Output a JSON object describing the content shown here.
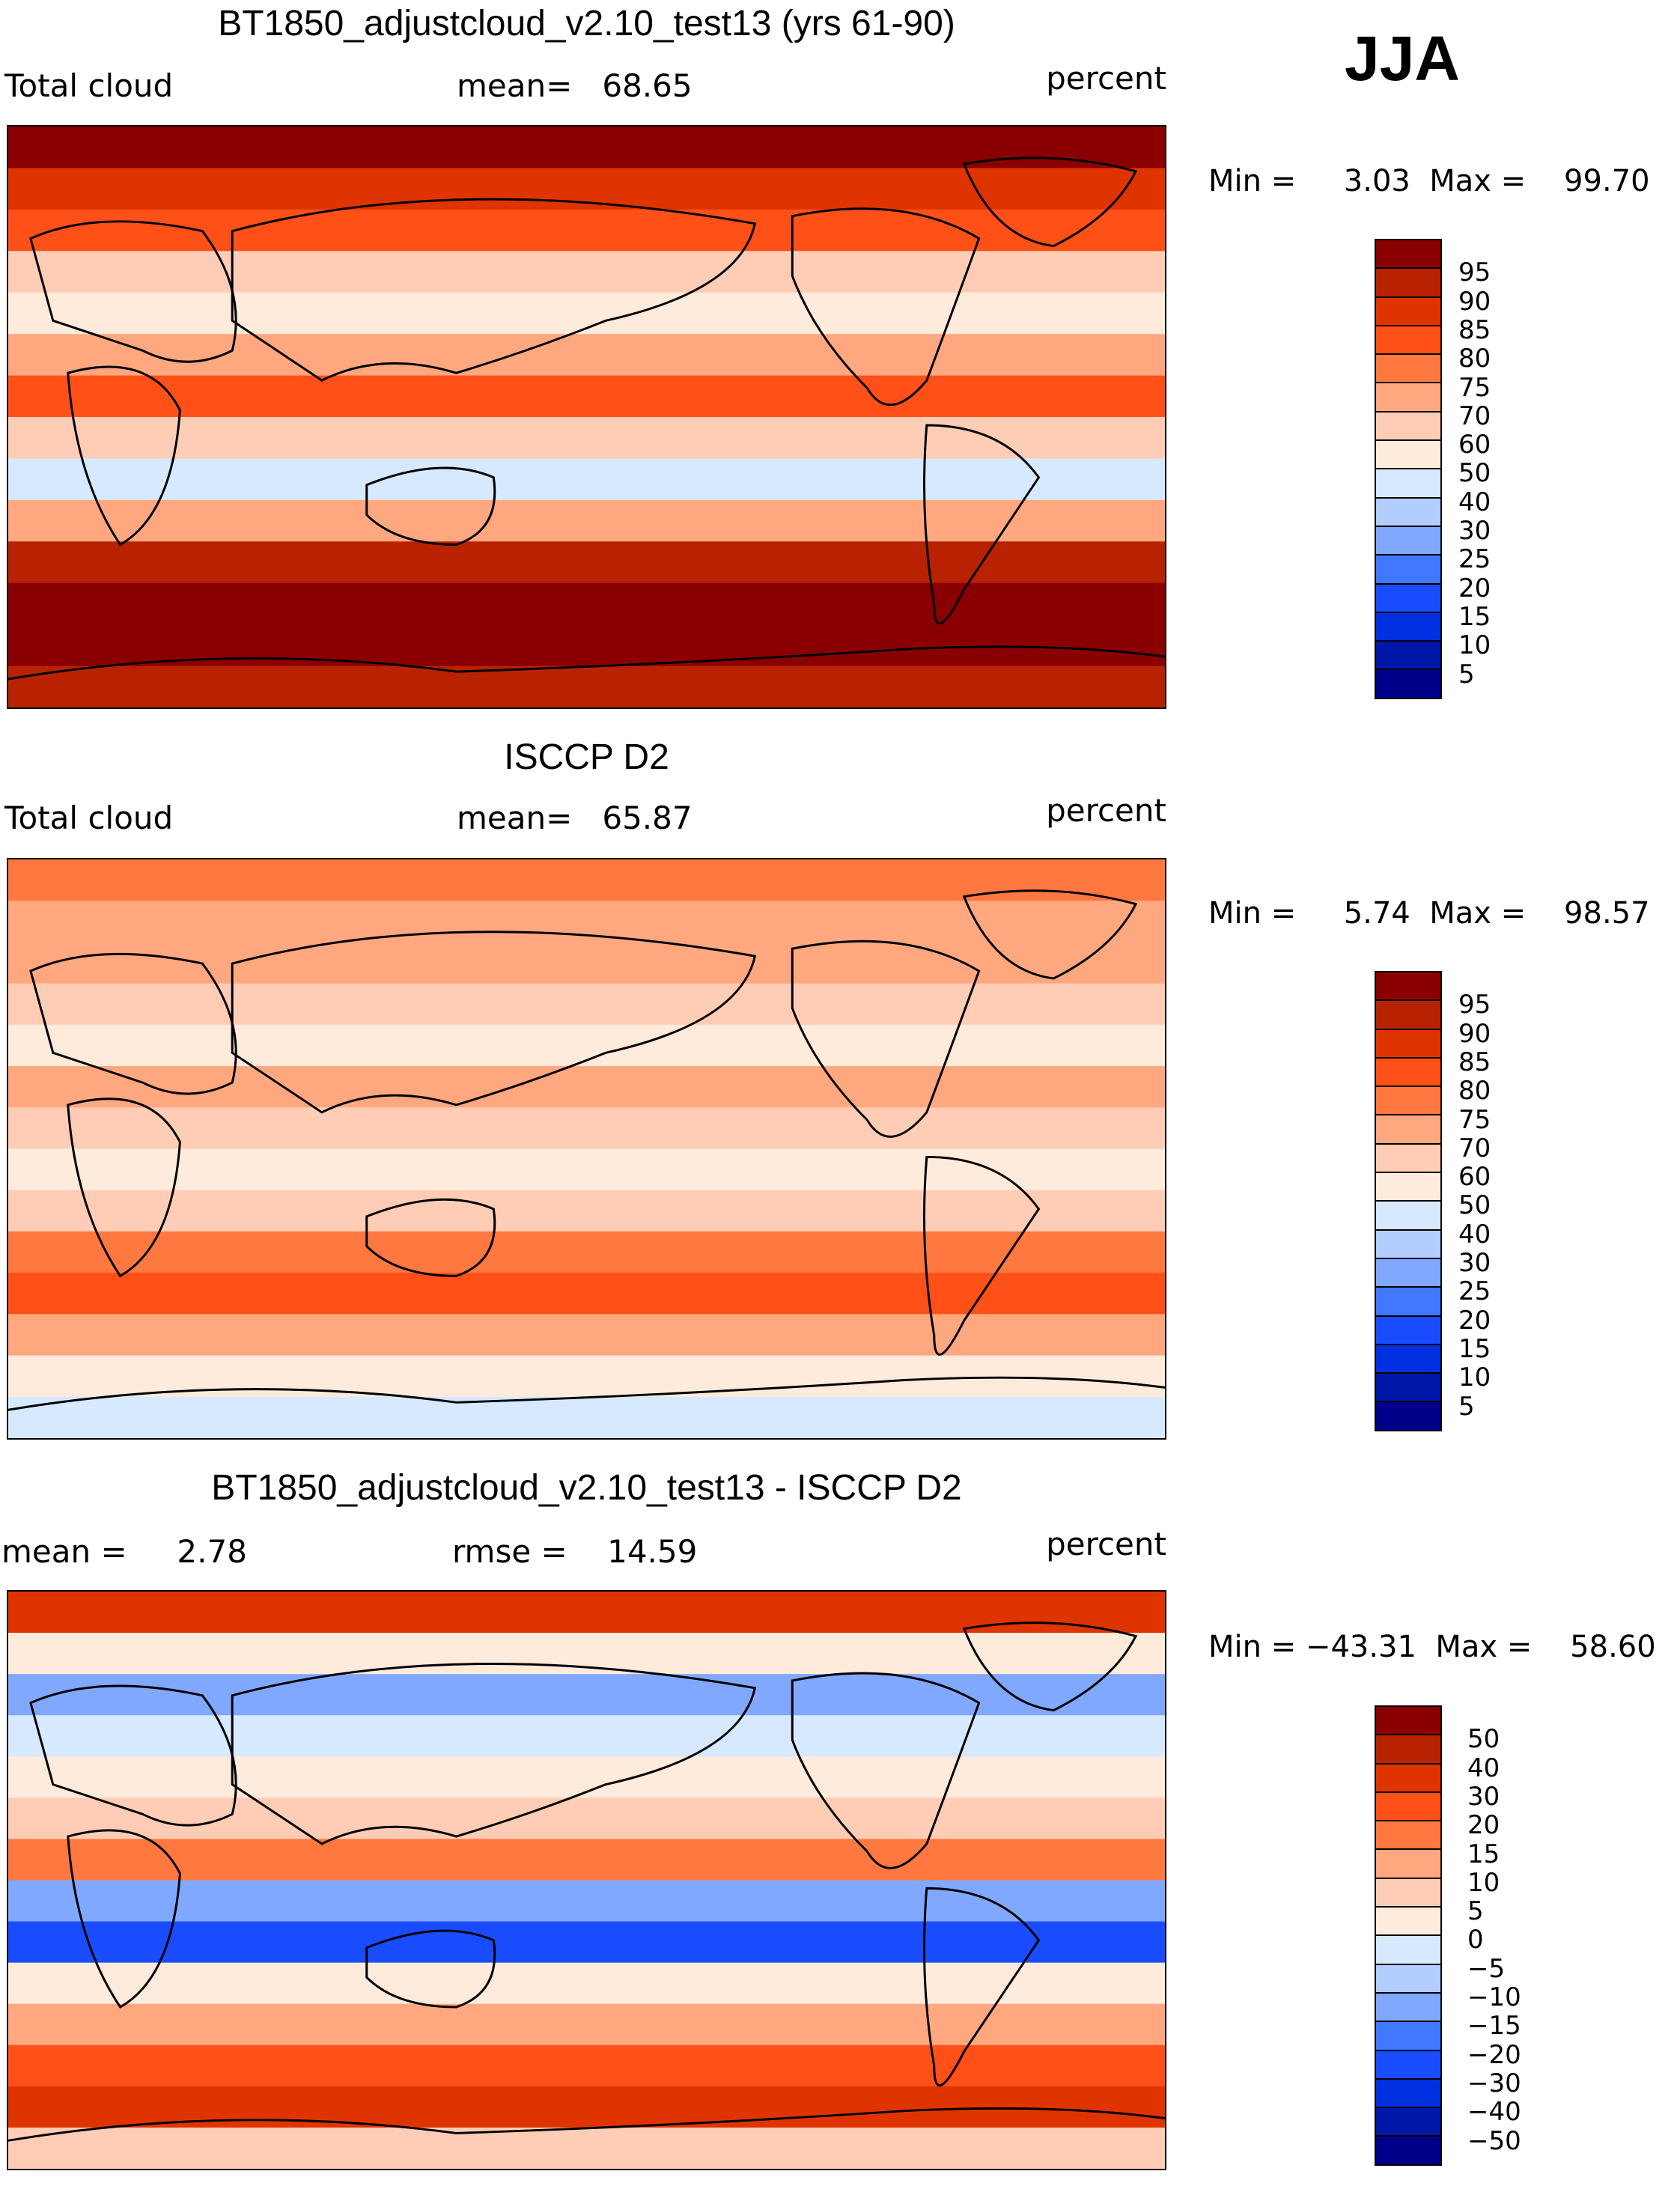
{
  "season": "JJA",
  "chart_data": [
    {
      "type": "heatmap",
      "title": "BT1850_adjustcloud_v2.10_test13 (yrs 61-90)",
      "variable": "Total cloud",
      "stat_text": "mean=   68.65",
      "units": "percent",
      "minmax_text": "Min =     3.03  Max =    99.70",
      "levels": [
        "95",
        "90",
        "85",
        "80",
        "75",
        "70",
        "60",
        "50",
        "40",
        "30",
        "25",
        "20",
        "15",
        "10",
        "5"
      ],
      "zonal_approx_N_to_S": [
        95,
        85,
        80,
        60,
        50,
        70,
        80,
        60,
        45,
        70,
        90,
        97,
        97,
        90
      ]
    },
    {
      "type": "heatmap",
      "title": "ISCCP D2",
      "variable": "Total cloud",
      "stat_text": "mean=   65.87",
      "units": "percent",
      "minmax_text": "Min =     5.74  Max =    98.57",
      "levels": [
        "95",
        "90",
        "85",
        "80",
        "75",
        "70",
        "60",
        "50",
        "40",
        "30",
        "25",
        "20",
        "15",
        "10",
        "5"
      ],
      "zonal_approx_N_to_S": [
        75,
        72,
        72,
        65,
        55,
        70,
        65,
        50,
        60,
        75,
        82,
        70,
        50,
        45
      ]
    },
    {
      "type": "heatmap",
      "title": "BT1850_adjustcloud_v2.10_test13 - ISCCP D2",
      "stat_text": "mean =     2.78",
      "stat2_text": "rmse =    14.59",
      "units": "percent",
      "minmax_text": "Min = −43.31  Max =    58.60",
      "levels": [
        "50",
        "40",
        "30",
        "20",
        "15",
        "10",
        "5",
        "0",
        "−5",
        "−10",
        "−15",
        "−20",
        "−30",
        "−40",
        "−50"
      ],
      "zonal_approx_N_to_S": [
        30,
        3,
        -12,
        -5,
        3,
        8,
        15,
        -15,
        -22,
        3,
        10,
        20,
        35,
        8
      ]
    }
  ],
  "colors": [
    "#8a0000",
    "#b82200",
    "#e03400",
    "#ff5018",
    "#ff7840",
    "#ffa880",
    "#ffcdb5",
    "#ffebdb",
    "#d6e9ff",
    "#b2cdff",
    "#80a8ff",
    "#4078ff",
    "#1a4cff",
    "#0030e0",
    "#0018a8",
    "#000088"
  ]
}
